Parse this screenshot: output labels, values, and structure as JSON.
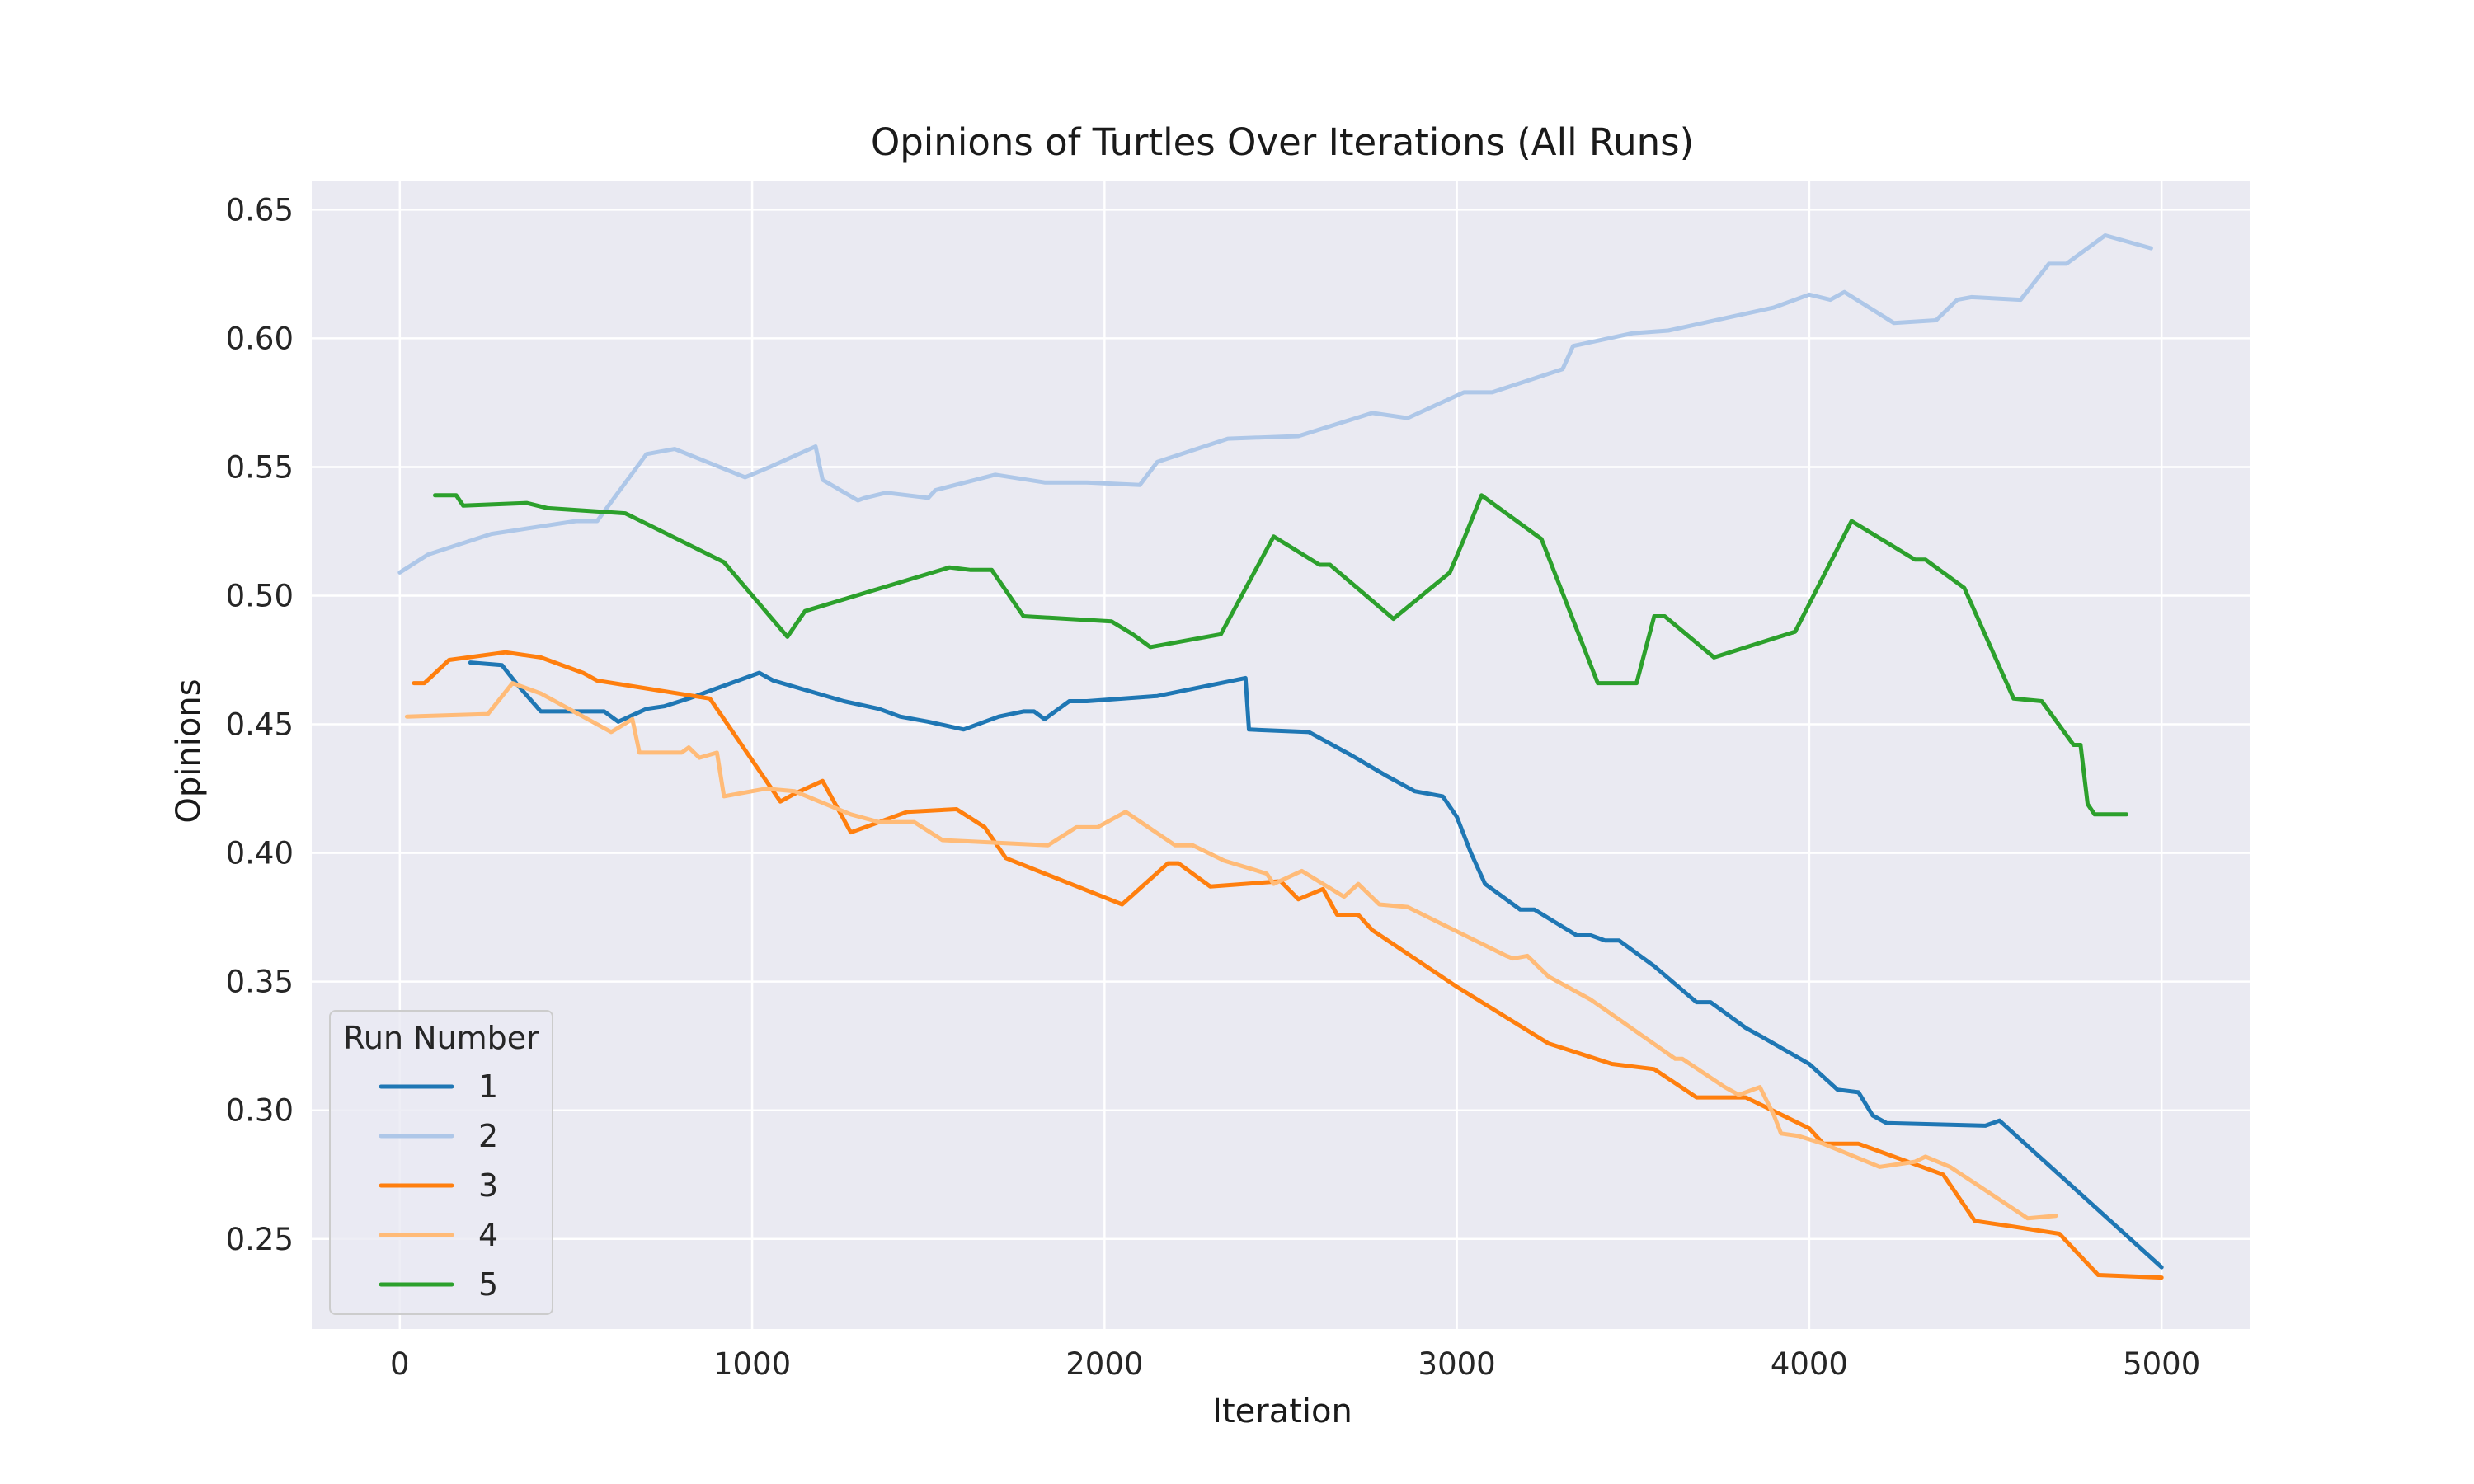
{
  "chart_data": {
    "type": "line",
    "title": "Opinions of Turtles Over Iterations (All Runs)",
    "xlabel": "Iteration",
    "ylabel": "Opinions",
    "xlim": [
      -250,
      5250
    ],
    "ylim": [
      0.215,
      0.661
    ],
    "xticks": [
      0,
      1000,
      2000,
      3000,
      4000,
      5000
    ],
    "xtick_labels": [
      "0",
      "1000",
      "2000",
      "3000",
      "4000",
      "5000"
    ],
    "yticks": [
      0.25,
      0.3,
      0.35,
      0.4,
      0.45,
      0.5,
      0.55,
      0.6,
      0.65
    ],
    "ytick_labels": [
      "0.25",
      "0.30",
      "0.35",
      "0.40",
      "0.45",
      "0.50",
      "0.55",
      "0.60",
      "0.65"
    ],
    "grid": true,
    "background": "#eaeaf2",
    "legend": {
      "title": "Run Number",
      "position": "lower-left"
    },
    "series": [
      {
        "name": "1",
        "color": "#1f77b4",
        "points": [
          [
            200,
            0.474
          ],
          [
            290,
            0.473
          ],
          [
            330,
            0.466
          ],
          [
            400,
            0.455
          ],
          [
            480,
            0.455
          ],
          [
            580,
            0.455
          ],
          [
            620,
            0.451
          ],
          [
            700,
            0.456
          ],
          [
            750,
            0.457
          ],
          [
            820,
            0.46
          ],
          [
            880,
            0.463
          ],
          [
            960,
            0.467
          ],
          [
            1020,
            0.47
          ],
          [
            1060,
            0.467
          ],
          [
            1160,
            0.463
          ],
          [
            1260,
            0.459
          ],
          [
            1360,
            0.456
          ],
          [
            1420,
            0.453
          ],
          [
            1500,
            0.451
          ],
          [
            1600,
            0.448
          ],
          [
            1700,
            0.453
          ],
          [
            1770,
            0.455
          ],
          [
            1800,
            0.455
          ],
          [
            1830,
            0.452
          ],
          [
            1900,
            0.459
          ],
          [
            1950,
            0.459
          ],
          [
            2150,
            0.461
          ],
          [
            2400,
            0.468
          ],
          [
            2410,
            0.448
          ],
          [
            2580,
            0.447
          ],
          [
            2700,
            0.438
          ],
          [
            2800,
            0.43
          ],
          [
            2880,
            0.424
          ],
          [
            2960,
            0.422
          ],
          [
            3000,
            0.414
          ],
          [
            3040,
            0.4
          ],
          [
            3080,
            0.388
          ],
          [
            3180,
            0.378
          ],
          [
            3220,
            0.378
          ],
          [
            3340,
            0.368
          ],
          [
            3380,
            0.368
          ],
          [
            3420,
            0.366
          ],
          [
            3460,
            0.366
          ],
          [
            3560,
            0.356
          ],
          [
            3680,
            0.342
          ],
          [
            3720,
            0.342
          ],
          [
            3820,
            0.332
          ],
          [
            3860,
            0.329
          ],
          [
            4000,
            0.318
          ],
          [
            4080,
            0.308
          ],
          [
            4140,
            0.307
          ],
          [
            4180,
            0.298
          ],
          [
            4220,
            0.295
          ],
          [
            4500,
            0.294
          ],
          [
            4540,
            0.296
          ],
          [
            5000,
            0.239
          ]
        ]
      },
      {
        "name": "2",
        "color": "#aec7e8",
        "points": [
          [
            0,
            0.509
          ],
          [
            80,
            0.516
          ],
          [
            260,
            0.524
          ],
          [
            500,
            0.529
          ],
          [
            560,
            0.529
          ],
          [
            700,
            0.555
          ],
          [
            780,
            0.557
          ],
          [
            980,
            0.546
          ],
          [
            1050,
            0.55
          ],
          [
            1180,
            0.558
          ],
          [
            1200,
            0.545
          ],
          [
            1300,
            0.537
          ],
          [
            1320,
            0.538
          ],
          [
            1380,
            0.54
          ],
          [
            1500,
            0.538
          ],
          [
            1520,
            0.541
          ],
          [
            1690,
            0.547
          ],
          [
            1830,
            0.544
          ],
          [
            1950,
            0.544
          ],
          [
            2100,
            0.543
          ],
          [
            2150,
            0.552
          ],
          [
            2350,
            0.561
          ],
          [
            2550,
            0.562
          ],
          [
            2760,
            0.571
          ],
          [
            2860,
            0.569
          ],
          [
            3020,
            0.579
          ],
          [
            3100,
            0.579
          ],
          [
            3300,
            0.588
          ],
          [
            3330,
            0.597
          ],
          [
            3500,
            0.602
          ],
          [
            3600,
            0.603
          ],
          [
            3900,
            0.612
          ],
          [
            4000,
            0.617
          ],
          [
            4060,
            0.615
          ],
          [
            4100,
            0.618
          ],
          [
            4240,
            0.606
          ],
          [
            4360,
            0.607
          ],
          [
            4420,
            0.615
          ],
          [
            4460,
            0.616
          ],
          [
            4600,
            0.615
          ],
          [
            4680,
            0.629
          ],
          [
            4730,
            0.629
          ],
          [
            4840,
            0.64
          ],
          [
            4970,
            0.635
          ]
        ]
      },
      {
        "name": "3",
        "color": "#ff7f0e",
        "points": [
          [
            40,
            0.466
          ],
          [
            70,
            0.466
          ],
          [
            140,
            0.475
          ],
          [
            300,
            0.478
          ],
          [
            400,
            0.476
          ],
          [
            520,
            0.47
          ],
          [
            560,
            0.467
          ],
          [
            880,
            0.46
          ],
          [
            1080,
            0.42
          ],
          [
            1120,
            0.423
          ],
          [
            1200,
            0.428
          ],
          [
            1280,
            0.408
          ],
          [
            1340,
            0.411
          ],
          [
            1440,
            0.416
          ],
          [
            1580,
            0.417
          ],
          [
            1660,
            0.41
          ],
          [
            1720,
            0.398
          ],
          [
            2050,
            0.38
          ],
          [
            2180,
            0.396
          ],
          [
            2210,
            0.396
          ],
          [
            2300,
            0.387
          ],
          [
            2500,
            0.389
          ],
          [
            2550,
            0.382
          ],
          [
            2620,
            0.386
          ],
          [
            2660,
            0.376
          ],
          [
            2720,
            0.376
          ],
          [
            2760,
            0.37
          ],
          [
            3000,
            0.348
          ],
          [
            3260,
            0.326
          ],
          [
            3440,
            0.318
          ],
          [
            3560,
            0.316
          ],
          [
            3680,
            0.305
          ],
          [
            3820,
            0.305
          ],
          [
            4000,
            0.293
          ],
          [
            4040,
            0.287
          ],
          [
            4140,
            0.287
          ],
          [
            4380,
            0.275
          ],
          [
            4470,
            0.257
          ],
          [
            4570,
            0.255
          ],
          [
            4710,
            0.252
          ],
          [
            4820,
            0.236
          ],
          [
            5000,
            0.235
          ]
        ]
      },
      {
        "name": "4",
        "color": "#ffbb78",
        "points": [
          [
            20,
            0.453
          ],
          [
            250,
            0.454
          ],
          [
            320,
            0.466
          ],
          [
            400,
            0.462
          ],
          [
            600,
            0.447
          ],
          [
            660,
            0.452
          ],
          [
            680,
            0.439
          ],
          [
            800,
            0.439
          ],
          [
            820,
            0.441
          ],
          [
            850,
            0.437
          ],
          [
            900,
            0.439
          ],
          [
            920,
            0.422
          ],
          [
            1040,
            0.425
          ],
          [
            1120,
            0.424
          ],
          [
            1280,
            0.415
          ],
          [
            1360,
            0.412
          ],
          [
            1460,
            0.412
          ],
          [
            1540,
            0.405
          ],
          [
            1840,
            0.403
          ],
          [
            1920,
            0.41
          ],
          [
            1980,
            0.41
          ],
          [
            2060,
            0.416
          ],
          [
            2200,
            0.403
          ],
          [
            2250,
            0.403
          ],
          [
            2340,
            0.397
          ],
          [
            2460,
            0.392
          ],
          [
            2480,
            0.388
          ],
          [
            2560,
            0.393
          ],
          [
            2680,
            0.383
          ],
          [
            2720,
            0.388
          ],
          [
            2780,
            0.38
          ],
          [
            2860,
            0.379
          ],
          [
            3140,
            0.36
          ],
          [
            3160,
            0.359
          ],
          [
            3200,
            0.36
          ],
          [
            3260,
            0.352
          ],
          [
            3380,
            0.343
          ],
          [
            3620,
            0.32
          ],
          [
            3640,
            0.32
          ],
          [
            3760,
            0.309
          ],
          [
            3800,
            0.306
          ],
          [
            3860,
            0.309
          ],
          [
            3900,
            0.298
          ],
          [
            3920,
            0.291
          ],
          [
            3970,
            0.29
          ],
          [
            4040,
            0.287
          ],
          [
            4200,
            0.278
          ],
          [
            4300,
            0.28
          ],
          [
            4330,
            0.282
          ],
          [
            4400,
            0.278
          ],
          [
            4620,
            0.258
          ],
          [
            4700,
            0.259
          ]
        ]
      },
      {
        "name": "5",
        "color": "#2ca02c",
        "points": [
          [
            100,
            0.539
          ],
          [
            160,
            0.539
          ],
          [
            180,
            0.535
          ],
          [
            360,
            0.536
          ],
          [
            420,
            0.534
          ],
          [
            640,
            0.532
          ],
          [
            920,
            0.513
          ],
          [
            1100,
            0.484
          ],
          [
            1150,
            0.494
          ],
          [
            1560,
            0.511
          ],
          [
            1620,
            0.51
          ],
          [
            1680,
            0.51
          ],
          [
            1770,
            0.492
          ],
          [
            2020,
            0.49
          ],
          [
            2080,
            0.485
          ],
          [
            2130,
            0.48
          ],
          [
            2330,
            0.485
          ],
          [
            2480,
            0.523
          ],
          [
            2610,
            0.512
          ],
          [
            2640,
            0.512
          ],
          [
            2820,
            0.491
          ],
          [
            2980,
            0.509
          ],
          [
            3020,
            0.522
          ],
          [
            3070,
            0.539
          ],
          [
            3240,
            0.522
          ],
          [
            3400,
            0.466
          ],
          [
            3510,
            0.466
          ],
          [
            3560,
            0.492
          ],
          [
            3590,
            0.492
          ],
          [
            3730,
            0.476
          ],
          [
            3960,
            0.486
          ],
          [
            4120,
            0.529
          ],
          [
            4300,
            0.514
          ],
          [
            4330,
            0.514
          ],
          [
            4440,
            0.503
          ],
          [
            4580,
            0.46
          ],
          [
            4660,
            0.459
          ],
          [
            4750,
            0.442
          ],
          [
            4770,
            0.442
          ],
          [
            4790,
            0.419
          ],
          [
            4810,
            0.415
          ],
          [
            4900,
            0.415
          ]
        ]
      }
    ]
  }
}
